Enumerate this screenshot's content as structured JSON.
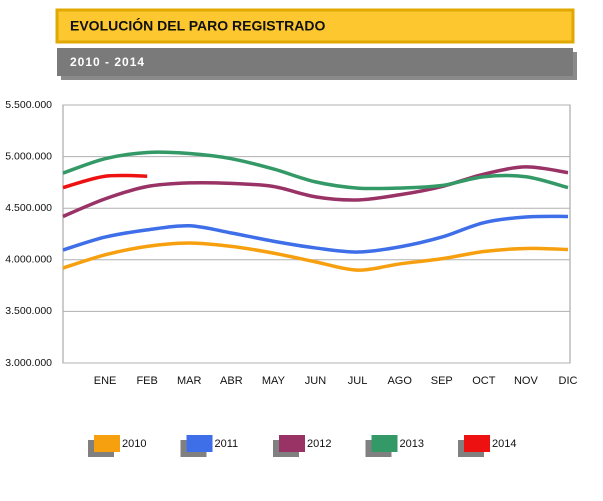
{
  "chart_data": {
    "type": "line",
    "title": "EVOLUCIÓN DEL PARO REGISTRADO",
    "subtitle": "2010 - 2014",
    "categories": [
      null,
      "ENE",
      "FEB",
      "MAR",
      "ABR",
      "MAY",
      "JUN",
      "JUL",
      "AGO",
      "SEP",
      "OCT",
      "NOV",
      "DIC"
    ],
    "series": [
      {
        "name": "2010",
        "color": "#f7a00f",
        "values": [
          3920000,
          4048000,
          4130000,
          4163000,
          4130000,
          4065000,
          3980000,
          3900000,
          3960000,
          4010000,
          4080000,
          4110000,
          4100000
        ]
      },
      {
        "name": "2011",
        "color": "#3f6fe8",
        "values": [
          4095000,
          4220000,
          4290000,
          4330000,
          4260000,
          4180000,
          4115000,
          4075000,
          4125000,
          4220000,
          4360000,
          4415000,
          4420000
        ]
      },
      {
        "name": "2012",
        "color": "#993366",
        "values": [
          4420000,
          4590000,
          4710000,
          4745000,
          4740000,
          4710000,
          4610000,
          4580000,
          4630000,
          4710000,
          4830000,
          4900000,
          4845000
        ]
      },
      {
        "name": "2013",
        "color": "#339966",
        "values": [
          4840000,
          4980000,
          5040000,
          5030000,
          4980000,
          4880000,
          4755000,
          4695000,
          4695000,
          4720000,
          4805000,
          4805000,
          4700000
        ]
      },
      {
        "name": "2014",
        "color": "#ee1111",
        "values": [
          4700000,
          4810000,
          4810000,
          null,
          null,
          null,
          null,
          null,
          null,
          null,
          null,
          null,
          null
        ]
      }
    ],
    "ylim": [
      3000000,
      5500000
    ],
    "yticks": [
      {
        "value": 3000000,
        "label": "3.000.000"
      },
      {
        "value": 3500000,
        "label": "3.500.000"
      },
      {
        "value": 4000000,
        "label": "4.000.000"
      },
      {
        "value": 4500000,
        "label": "4.500.000"
      },
      {
        "value": 5000000,
        "label": "5.000.000"
      },
      {
        "value": 5500000,
        "label": "5.500.000"
      }
    ],
    "grid": true
  }
}
